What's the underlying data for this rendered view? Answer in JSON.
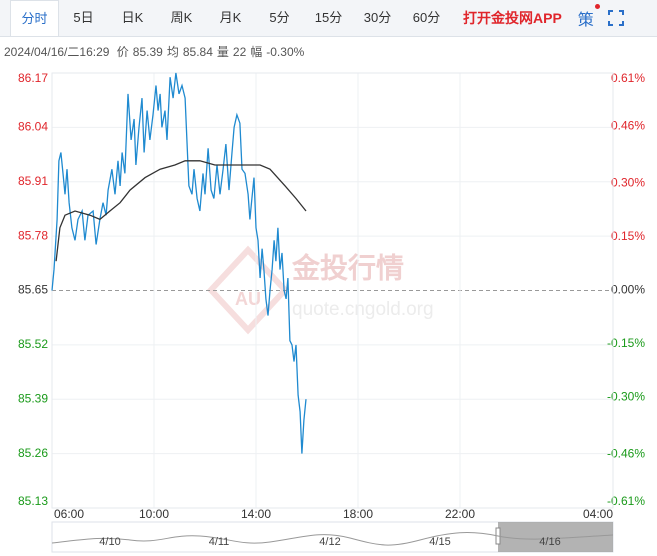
{
  "tabs": [
    {
      "label": "分时",
      "active": true
    },
    {
      "label": "5日"
    },
    {
      "label": "日K"
    },
    {
      "label": "周K"
    },
    {
      "label": "月K"
    },
    {
      "label": "5分"
    },
    {
      "label": "15分"
    },
    {
      "label": "30分"
    },
    {
      "label": "60分"
    }
  ],
  "app_link": "打开金投网APP",
  "strategy_button": "策",
  "info": {
    "datetime": "2024/04/16/二16:29",
    "items": [
      {
        "label": "价",
        "value": "85.39"
      },
      {
        "label": "均",
        "value": "85.84"
      },
      {
        "label": "量",
        "value": "22"
      },
      {
        "label": "幅",
        "value": "-0.30%"
      }
    ]
  },
  "watermark": {
    "logo": "AU",
    "title": "金投行情",
    "url": "quote.cngold.org"
  },
  "navigator": {
    "labels": [
      "4/10",
      "4/11",
      "4/12",
      "4/15",
      "4/16"
    ]
  },
  "chart_data": {
    "type": "line",
    "xlim": [
      6,
      28
    ],
    "xticks": [
      {
        "value": 6,
        "label": "06:00"
      },
      {
        "value": 10,
        "label": "10:00"
      },
      {
        "value": 14,
        "label": "14:00"
      },
      {
        "value": 18,
        "label": "18:00"
      },
      {
        "value": 22,
        "label": "22:00"
      },
      {
        "value": 28,
        "label": "04:00"
      }
    ],
    "ylim": [
      85.13,
      86.17
    ],
    "yticks": [
      86.17,
      86.04,
      85.91,
      85.78,
      85.65,
      85.52,
      85.39,
      85.26,
      85.13
    ],
    "y2lim": [
      -0.61,
      0.61
    ],
    "y2ticks": [
      {
        "value": 0.61,
        "label": "0.61%"
      },
      {
        "value": 0.46,
        "label": "0.46%"
      },
      {
        "value": 0.3,
        "label": "0.30%"
      },
      {
        "value": 0.15,
        "label": "0.15%"
      },
      {
        "value": 0,
        "label": "0.00%"
      },
      {
        "value": -0.15,
        "label": "-0.15%"
      },
      {
        "value": -0.3,
        "label": "-0.30%"
      },
      {
        "value": -0.46,
        "label": "-0.46%"
      },
      {
        "value": -0.61,
        "label": "-0.61%"
      }
    ],
    "reference_value": 85.65,
    "grid": true,
    "series": [
      {
        "color": "#1f8ad0",
        "x": [
          6.0,
          6.08,
          6.2,
          6.27,
          6.35,
          6.43,
          6.51,
          6.59,
          6.67,
          6.78,
          6.9,
          7.02,
          7.18,
          7.29,
          7.41,
          7.61,
          7.73,
          7.88,
          8.0,
          8.12,
          8.2,
          8.35,
          8.47,
          8.59,
          8.67,
          8.75,
          8.86,
          8.98,
          9.1,
          9.22,
          9.29,
          9.41,
          9.53,
          9.61,
          9.73,
          9.84,
          9.96,
          10.08,
          10.16,
          10.24,
          10.31,
          10.43,
          10.51,
          10.63,
          10.75,
          10.86,
          10.98,
          11.1,
          11.22,
          11.29,
          11.37,
          11.49,
          11.57,
          11.69,
          11.8,
          11.92,
          12.0,
          12.12,
          12.24,
          12.35,
          12.47,
          12.59,
          12.71,
          12.82,
          12.94,
          13.06,
          13.14,
          13.25,
          13.37,
          13.45,
          13.57,
          13.69,
          13.76,
          13.84,
          13.92,
          14.0,
          14.08,
          14.16,
          14.24,
          14.31,
          14.39,
          14.47,
          14.55,
          14.63,
          14.71,
          14.78,
          14.86,
          14.94,
          15.02,
          15.1,
          15.18,
          15.25,
          15.33,
          15.41,
          15.49,
          15.57,
          15.65,
          15.73,
          15.8,
          15.88,
          15.96
        ],
        "values": [
          85.65,
          85.7,
          85.82,
          85.96,
          85.98,
          85.93,
          85.88,
          85.94,
          85.86,
          85.8,
          85.77,
          85.82,
          85.84,
          85.77,
          85.83,
          85.84,
          85.76,
          85.82,
          85.86,
          85.83,
          85.89,
          85.94,
          85.88,
          85.96,
          85.9,
          85.98,
          85.93,
          86.12,
          86.01,
          86.06,
          85.95,
          86.04,
          86.11,
          85.98,
          86.08,
          86.01,
          86.07,
          86.14,
          86.08,
          86.12,
          86.04,
          86.08,
          86.01,
          86.16,
          86.11,
          86.17,
          86.12,
          86.14,
          86.11,
          86.01,
          85.9,
          85.88,
          85.94,
          85.87,
          85.84,
          85.93,
          85.88,
          85.99,
          85.89,
          85.87,
          85.95,
          85.88,
          85.94,
          86.0,
          85.89,
          85.98,
          86.04,
          86.07,
          86.05,
          85.94,
          85.93,
          85.88,
          85.82,
          85.87,
          85.92,
          85.8,
          85.77,
          85.68,
          85.75,
          85.7,
          85.63,
          85.59,
          85.65,
          85.7,
          85.77,
          85.72,
          85.8,
          85.7,
          85.74,
          85.65,
          85.63,
          85.68,
          85.53,
          85.52,
          85.48,
          85.52,
          85.4,
          85.36,
          85.26,
          85.34,
          85.39
        ]
      },
      {
        "color": "#333333",
        "x": [
          6.16,
          6.31,
          6.51,
          6.9,
          7.49,
          7.88,
          8.27,
          8.67,
          9.06,
          9.65,
          10.24,
          10.82,
          11.22,
          11.8,
          12.39,
          12.98,
          13.69,
          14.16,
          14.55,
          15.14,
          15.57,
          15.96
        ],
        "values": [
          85.72,
          85.8,
          85.83,
          85.84,
          85.83,
          85.82,
          85.84,
          85.86,
          85.89,
          85.92,
          85.94,
          85.95,
          85.96,
          85.96,
          85.95,
          85.95,
          85.95,
          85.95,
          85.94,
          85.9,
          85.87,
          85.84
        ]
      }
    ]
  }
}
